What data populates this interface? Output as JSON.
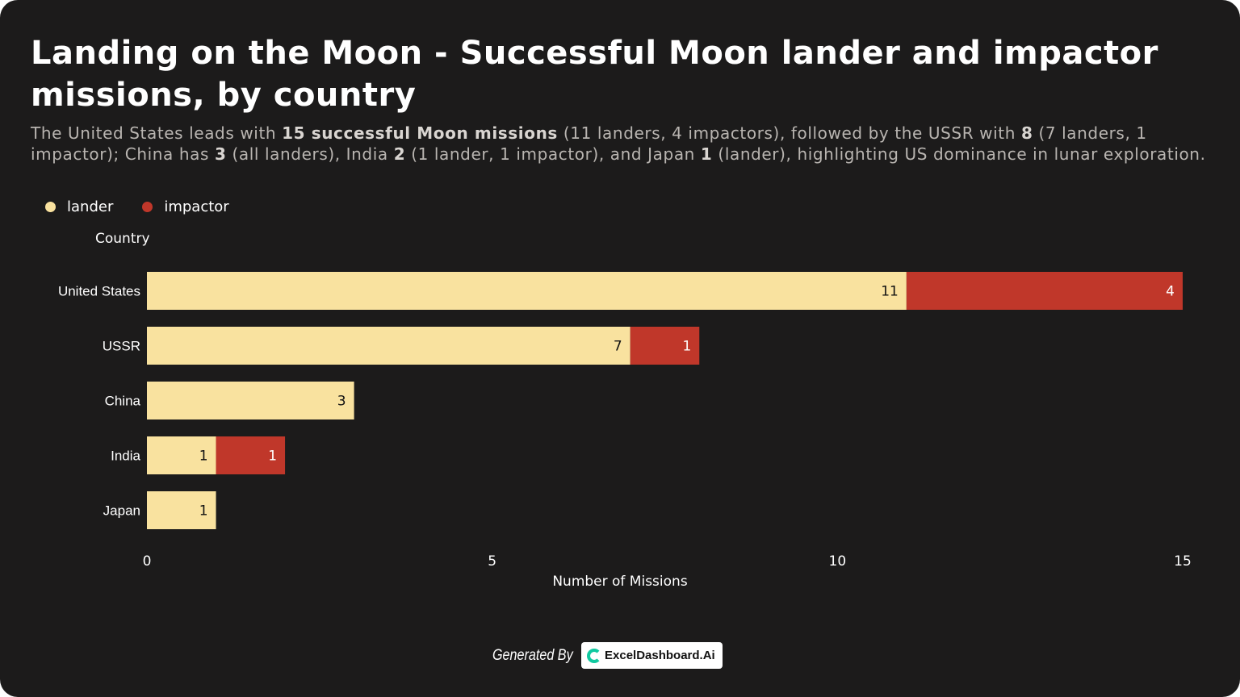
{
  "title": "Landing on the Moon - Successful Moon lander and impactor missions, by country",
  "subtitle": {
    "t1": "The United States leads with ",
    "b1": "15 successful Moon missions",
    "t2": " (11 landers, 4 impactors), followed by the USSR with ",
    "b2": "8",
    "t3": " (7 landers, 1 impactor); China has ",
    "b3": "3",
    "t4": " (all landers), India ",
    "b4": "2",
    "t5": " (1 lander, 1 impactor), and Japan ",
    "b5": "1",
    "t6": " (lander), highlighting US dominance in lunar exploration."
  },
  "colors": {
    "lander": "#f9e29f",
    "impactor": "#c0372a",
    "background": "#1c1b1b"
  },
  "chart_data": {
    "type": "bar",
    "orientation": "horizontal",
    "stacked": true,
    "categories": [
      "United States",
      "USSR",
      "China",
      "India",
      "Japan"
    ],
    "series": [
      {
        "name": "lander",
        "values": [
          11,
          7,
          3,
          1,
          1
        ]
      },
      {
        "name": "impactor",
        "values": [
          4,
          1,
          0,
          1,
          0
        ]
      }
    ],
    "xlabel": "Number of Missions",
    "ylabel": "Country",
    "xlim": [
      0,
      15
    ],
    "xticks": [
      0,
      5,
      10,
      15
    ],
    "grid": false,
    "legend": "top-left"
  },
  "footer": {
    "generated_by": "Generated By",
    "brand": "ExcelDashboard.Ai"
  }
}
